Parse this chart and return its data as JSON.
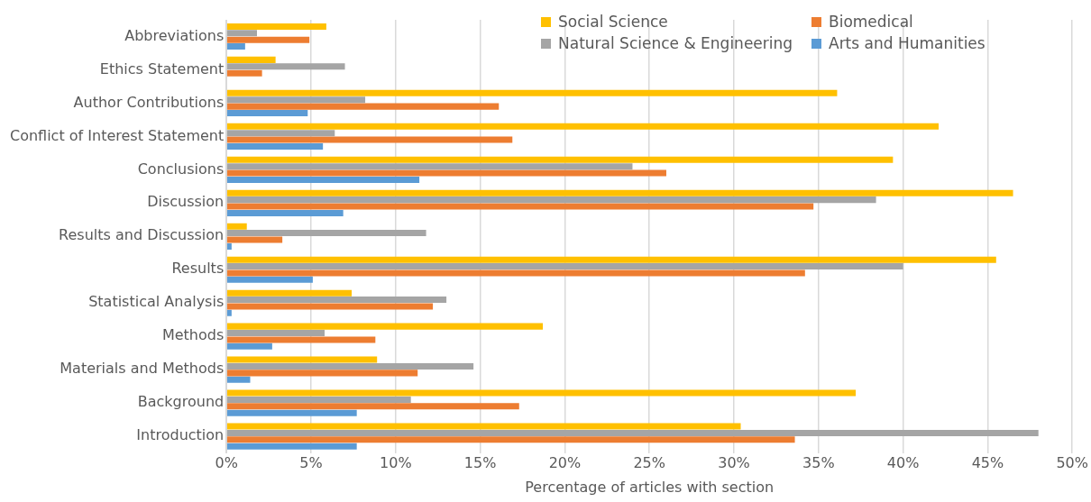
{
  "chart_data": {
    "type": "bar",
    "orientation": "horizontal",
    "xlabel": "Percentage of articles with section",
    "categories": [
      "Abbreviations",
      "Ethics Statement",
      "Author Contributions",
      "Conflict of Interest Statement",
      "Conclusions",
      "Discussion",
      "Results and Discussion",
      "Results",
      "Statistical Analysis",
      "Methods",
      "Materials and Methods",
      "Background",
      "Introduction"
    ],
    "series": [
      {
        "name": "Social Science",
        "color": "#ffc000",
        "values": [
          5.9,
          2.9,
          36.1,
          42.1,
          39.4,
          46.5,
          1.2,
          45.5,
          7.4,
          18.7,
          8.9,
          37.2,
          30.4
        ]
      },
      {
        "name": "Natural Science & Engineering",
        "color": "#a5a5a5",
        "values": [
          1.8,
          7.0,
          8.2,
          6.4,
          24.0,
          38.4,
          11.8,
          40.0,
          13.0,
          5.8,
          14.6,
          10.9,
          48.0
        ]
      },
      {
        "name": "Biomedical",
        "color": "#ed7d31",
        "values": [
          4.9,
          2.1,
          16.1,
          16.9,
          26.0,
          34.7,
          3.3,
          34.2,
          12.2,
          8.8,
          11.3,
          17.3,
          33.6
        ]
      },
      {
        "name": "Arts and Humanities",
        "color": "#5b9bd5",
        "values": [
          1.1,
          null,
          4.8,
          5.7,
          11.4,
          6.9,
          0.3,
          5.1,
          0.3,
          2.7,
          1.4,
          7.7,
          7.7
        ]
      }
    ],
    "xlim": [
      0,
      50
    ],
    "xticks": [
      {
        "value": 0,
        "label": "0%"
      },
      {
        "value": 5,
        "label": "5%"
      },
      {
        "value": 10,
        "label": "10%"
      },
      {
        "value": 15,
        "label": "15%"
      },
      {
        "value": 20,
        "label": "20%"
      },
      {
        "value": 25,
        "label": "25%"
      },
      {
        "value": 30,
        "label": "30%"
      },
      {
        "value": 35,
        "label": "35%"
      },
      {
        "value": 40,
        "label": "40%"
      },
      {
        "value": 45,
        "label": "45%"
      },
      {
        "value": 50,
        "label": "50%"
      }
    ],
    "grid": "x",
    "legend": "top right"
  }
}
